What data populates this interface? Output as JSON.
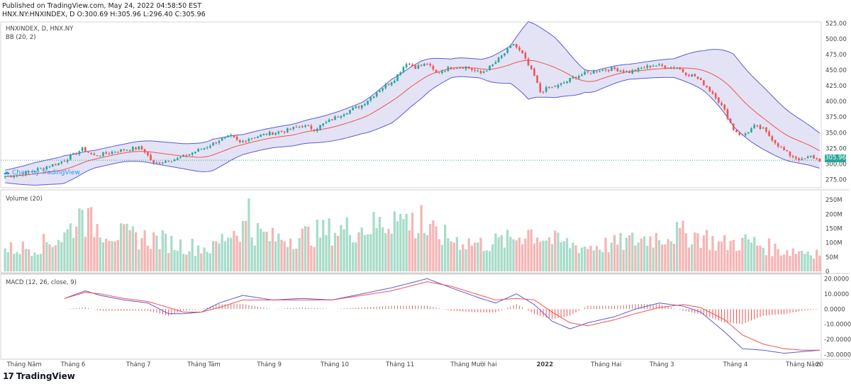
{
  "header": {
    "published": "Published on TradingView.com, May 24, 2022 04:58:50 EST",
    "ohlc": "HNX.NY:HNXINDEX, D O:300.69 H:305.96 L:296.40 C:305.96"
  },
  "panes": {
    "price_title": "HNXINDEX, D, HNX.NY",
    "bb_title": "BB (20, 2)",
    "volume_title": "Volume (20)",
    "macd_title": "MACD (12, 26, close, 9)"
  },
  "price_tag": "305.96",
  "watermark": "Chart by TradingView",
  "footer": {
    "logo": "17",
    "brand": "TradingView"
  },
  "colors": {
    "up": "#26a69a",
    "down": "#ef5350",
    "band_fill": "#d9d9f2",
    "band_line": "#5b5bd6",
    "basis": "#ef5350",
    "macd": "#5b5bd6",
    "signal": "#ef5350",
    "vol_up": "#a7dcc8",
    "vol_down": "#f5b5b5"
  },
  "chart_data": [
    {
      "type": "candlestick",
      "title": "HNXINDEX, D, HNX.NY",
      "indicator": "BB (20, 2)",
      "ylim": [
        262,
        527
      ],
      "y_ticks": [
        275,
        300,
        325,
        350,
        375,
        400,
        425,
        450,
        475,
        500,
        525
      ],
      "y_tick_labels": [
        "275.00",
        "300.00",
        "325.00",
        "350.00",
        "375.00",
        "400.00",
        "425.00",
        "450.00",
        "475.00",
        "500.00",
        "525.00"
      ],
      "last_price": 305.96,
      "x_labels": [
        "Tháng Năm",
        "Tháng 6",
        "Tháng 7",
        "Tháng Tám",
        "Tháng 9",
        "Tháng 10",
        "Tháng 11",
        "Tháng Mười hai",
        "2022",
        "Tháng Hai",
        "Tháng 3",
        "Tháng 4",
        "Tháng Năm",
        "20"
      ],
      "close_path": [
        [
          0,
          280
        ],
        [
          5,
          283
        ],
        [
          10,
          290
        ],
        [
          14,
          296
        ],
        [
          18,
          301
        ],
        [
          22,
          312
        ],
        [
          26,
          324
        ],
        [
          30,
          313
        ],
        [
          35,
          318
        ],
        [
          40,
          323
        ],
        [
          45,
          326
        ],
        [
          47,
          320
        ],
        [
          50,
          300
        ],
        [
          54,
          305
        ],
        [
          58,
          308
        ],
        [
          63,
          318
        ],
        [
          68,
          328
        ],
        [
          72,
          338
        ],
        [
          76,
          344
        ],
        [
          79,
          334
        ],
        [
          82,
          341
        ],
        [
          88,
          348
        ],
        [
          94,
          353
        ],
        [
          100,
          361
        ],
        [
          104,
          356
        ],
        [
          108,
          366
        ],
        [
          114,
          382
        ],
        [
          120,
          394
        ],
        [
          125,
          415
        ],
        [
          131,
          436
        ],
        [
          135,
          462
        ],
        [
          138,
          455
        ],
        [
          142,
          460
        ],
        [
          145,
          445
        ],
        [
          150,
          455
        ],
        [
          155,
          455
        ],
        [
          160,
          445
        ],
        [
          164,
          458
        ],
        [
          168,
          477
        ],
        [
          171,
          492
        ],
        [
          174,
          475
        ],
        [
          178,
          440
        ],
        [
          180,
          415
        ],
        [
          182,
          420
        ],
        [
          186,
          425
        ],
        [
          192,
          440
        ],
        [
          196,
          446
        ],
        [
          200,
          450
        ],
        [
          205,
          452
        ],
        [
          210,
          447
        ],
        [
          214,
          453
        ],
        [
          218,
          458
        ],
        [
          222,
          456
        ],
        [
          226,
          454
        ],
        [
          229,
          445
        ],
        [
          232,
          440
        ],
        [
          235,
          428
        ],
        [
          239,
          408
        ],
        [
          242,
          385
        ],
        [
          245,
          355
        ],
        [
          248,
          345
        ],
        [
          252,
          360
        ],
        [
          255,
          355
        ],
        [
          258,
          340
        ],
        [
          261,
          325
        ],
        [
          264,
          314
        ],
        [
          268,
          306
        ],
        [
          271,
          312
        ],
        [
          274,
          306
        ]
      ],
      "band_width_path": [
        [
          0,
          10
        ],
        [
          10,
          18
        ],
        [
          20,
          22
        ],
        [
          30,
          14
        ],
        [
          40,
          14
        ],
        [
          50,
          18
        ],
        [
          60,
          20
        ],
        [
          70,
          25
        ],
        [
          80,
          16
        ],
        [
          90,
          16
        ],
        [
          100,
          18
        ],
        [
          110,
          22
        ],
        [
          120,
          25
        ],
        [
          130,
          35
        ],
        [
          140,
          30
        ],
        [
          150,
          15
        ],
        [
          160,
          15
        ],
        [
          170,
          30
        ],
        [
          176,
          62
        ],
        [
          185,
          48
        ],
        [
          195,
          18
        ],
        [
          210,
          12
        ],
        [
          225,
          15
        ],
        [
          235,
          32
        ],
        [
          245,
          58
        ],
        [
          255,
          50
        ],
        [
          265,
          38
        ],
        [
          274,
          28
        ]
      ]
    },
    {
      "type": "bar",
      "title": "Volume (20)",
      "ylim": [
        0,
        280
      ],
      "y_ticks": [
        0,
        50,
        100,
        150,
        200,
        250
      ],
      "y_tick_labels": [
        "0",
        "50M",
        "100M",
        "150M",
        "200M",
        "250M"
      ],
      "volume_path": [
        [
          0,
          80
        ],
        [
          10,
          90
        ],
        [
          20,
          130
        ],
        [
          25,
          200
        ],
        [
          30,
          170
        ],
        [
          40,
          130
        ],
        [
          50,
          120
        ],
        [
          60,
          95
        ],
        [
          70,
          85
        ],
        [
          75,
          140
        ],
        [
          80,
          165
        ],
        [
          90,
          120
        ],
        [
          100,
          130
        ],
        [
          110,
          150
        ],
        [
          120,
          160
        ],
        [
          130,
          180
        ],
        [
          135,
          195
        ],
        [
          140,
          150
        ],
        [
          150,
          120
        ],
        [
          160,
          100
        ],
        [
          170,
          115
        ],
        [
          176,
          150
        ],
        [
          185,
          110
        ],
        [
          195,
          90
        ],
        [
          205,
          100
        ],
        [
          215,
          120
        ],
        [
          225,
          140
        ],
        [
          235,
          130
        ],
        [
          240,
          100
        ],
        [
          250,
          110
        ],
        [
          260,
          80
        ],
        [
          274,
          72
        ]
      ],
      "spikes": [
        {
          "x": 82,
          "value": 255
        },
        {
          "x": 140,
          "value": 232
        },
        {
          "x": 131,
          "value": 210
        },
        {
          "x": 137,
          "value": 205
        },
        {
          "x": 26,
          "value": 215
        }
      ]
    },
    {
      "type": "line",
      "title": "MACD (12, 26, close, 9)",
      "ylim": [
        -32,
        22
      ],
      "y_ticks": [
        -30,
        -20,
        -10,
        0,
        10,
        20
      ],
      "y_tick_labels": [
        "-30.0000",
        "-20.0000",
        "-10.0000",
        "0.0000",
        "10.0000",
        "20.0000"
      ],
      "series": [
        {
          "label": "MACD",
          "values": [
            [
              20,
              7
            ],
            [
              27,
              12
            ],
            [
              32,
              9
            ],
            [
              40,
              6
            ],
            [
              48,
              4
            ],
            [
              55,
              -3
            ],
            [
              60,
              -3
            ],
            [
              66,
              -2
            ],
            [
              72,
              4
            ],
            [
              80,
              9
            ],
            [
              90,
              6
            ],
            [
              100,
              7
            ],
            [
              110,
              6
            ],
            [
              120,
              10
            ],
            [
              130,
              14
            ],
            [
              142,
              20
            ],
            [
              150,
              14
            ],
            [
              160,
              7
            ],
            [
              165,
              4
            ],
            [
              172,
              10
            ],
            [
              178,
              3
            ],
            [
              184,
              -8
            ],
            [
              190,
              -13
            ],
            [
              196,
              -9
            ],
            [
              205,
              -5
            ],
            [
              212,
              0
            ],
            [
              220,
              4
            ],
            [
              228,
              2
            ],
            [
              234,
              -2
            ],
            [
              242,
              -15
            ],
            [
              248,
              -26
            ],
            [
              255,
              -27
            ],
            [
              262,
              -29
            ],
            [
              268,
              -28
            ],
            [
              274,
              -27
            ]
          ]
        },
        {
          "label": "Signal",
          "values": [
            [
              20,
              7
            ],
            [
              27,
              11
            ],
            [
              32,
              10
            ],
            [
              40,
              7
            ],
            [
              48,
              5
            ],
            [
              55,
              1
            ],
            [
              60,
              -2
            ],
            [
              66,
              -2
            ],
            [
              72,
              1
            ],
            [
              80,
              6
            ],
            [
              90,
              6
            ],
            [
              100,
              6
            ],
            [
              110,
              6
            ],
            [
              120,
              9
            ],
            [
              130,
              12
            ],
            [
              142,
              18
            ],
            [
              150,
              15
            ],
            [
              160,
              9
            ],
            [
              165,
              6
            ],
            [
              172,
              7
            ],
            [
              178,
              6
            ],
            [
              184,
              -2
            ],
            [
              190,
              -9
            ],
            [
              196,
              -11
            ],
            [
              205,
              -7
            ],
            [
              212,
              -3
            ],
            [
              220,
              1
            ],
            [
              228,
              3
            ],
            [
              234,
              1
            ],
            [
              242,
              -7
            ],
            [
              248,
              -17
            ],
            [
              255,
              -23
            ],
            [
              262,
              -26
            ],
            [
              268,
              -27
            ],
            [
              274,
              -27
            ]
          ]
        }
      ]
    }
  ]
}
